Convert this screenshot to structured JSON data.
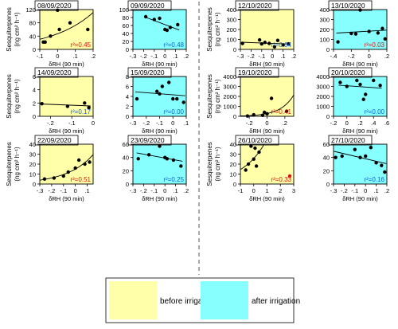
{
  "colors": {
    "before": "#ffffaa",
    "after": "#88ffff",
    "red_text": "#e01010",
    "blue_text": "#1060e0",
    "point": "#000000"
  },
  "legend": {
    "before": "before irrigation",
    "after": "after irrigation"
  },
  "chart_data": [
    {
      "type": "scatter",
      "title": "08/09/2020",
      "ylabel_lines": [
        "Sesquiterpenes",
        "(ng cm² h⁻¹)"
      ],
      "xlabel": "δRH (90 min)",
      "xlim": [
        -0.1,
        0.2
      ],
      "xticks": [
        -0.1,
        0,
        0.1,
        0.2
      ],
      "ylim": [
        0,
        120
      ],
      "yticks": [
        0,
        40,
        80,
        120
      ],
      "phase": "before",
      "r2_label": "r²=0.45",
      "r2_color": "red",
      "points": [
        [
          -0.08,
          22
        ],
        [
          -0.07,
          22
        ],
        [
          -0.04,
          40
        ],
        [
          0,
          118
        ],
        [
          0.01,
          60
        ],
        [
          0.07,
          80
        ],
        [
          0.17,
          60
        ]
      ],
      "fit": "power"
    },
    {
      "type": "scatter",
      "title": "09/09/2020",
      "ylabel_lines": [],
      "xlabel": "δRH (90 min)",
      "xlim": [
        -0.3,
        0.2
      ],
      "xticks": [
        -0.3,
        -0.2,
        -0.1,
        0,
        0.1,
        0.2
      ],
      "ylim": [
        0,
        100
      ],
      "yticks": [
        0,
        20,
        40,
        60,
        80,
        100
      ],
      "phase": "after",
      "r2_label": "r²=0.48",
      "r2_color": "blue",
      "points": [
        [
          -0.18,
          82
        ],
        [
          -0.1,
          75
        ],
        [
          -0.05,
          78
        ],
        [
          0,
          50
        ],
        [
          0.05,
          55
        ],
        [
          0.02,
          48
        ],
        [
          0.12,
          62
        ]
      ],
      "fit": "linear"
    },
    {
      "type": "scatter",
      "title": "12/10/2020",
      "ylabel_lines": [
        "Sesquiterpenes",
        "(ng cm² h⁻¹)"
      ],
      "xlabel": "δRH (90 min)",
      "xlim": [
        -0.3,
        0.2
      ],
      "xticks": [
        -0.3,
        -0.2,
        -0.1,
        0,
        0.1,
        0.2
      ],
      "ylim": [
        0,
        400
      ],
      "yticks": [
        0,
        100,
        200,
        300,
        400
      ],
      "phase": "before",
      "r2_label": "r²=0.04",
      "r2_color": "blue",
      "points": [
        [
          -0.28,
          60
        ],
        [
          -0.12,
          95
        ],
        [
          -0.1,
          55
        ],
        [
          -0.07,
          70
        ],
        [
          -0.03,
          60
        ],
        [
          0.02,
          25
        ],
        [
          0.05,
          90
        ],
        [
          0.1,
          45
        ],
        [
          0.15,
          55
        ]
      ],
      "fit": "linear"
    },
    {
      "type": "scatter",
      "title": "13/10/2020",
      "ylabel_lines": [],
      "xlabel": "δRH (90 min)",
      "xlim": [
        -0.4,
        0.2
      ],
      "xticks": [
        -0.4,
        -0.2,
        0,
        0.2
      ],
      "ylim": [
        0,
        400
      ],
      "yticks": [
        0,
        100,
        200,
        300,
        400
      ],
      "phase": "after",
      "r2_label": "r²=0.03",
      "r2_color": "red",
      "points": [
        [
          -0.35,
          75
        ],
        [
          -0.2,
          160
        ],
        [
          -0.15,
          155
        ],
        [
          -0.1,
          395
        ],
        [
          0,
          180
        ],
        [
          0.1,
          165
        ],
        [
          0.15,
          210
        ],
        [
          0.18,
          105
        ]
      ],
      "fit": "linear"
    },
    {
      "type": "scatter",
      "title": "14/09/2020",
      "ylabel_lines": [
        "Sesquiterpenes",
        "(ng cm² h⁻¹)"
      ],
      "xlabel": "δRH (90 min)",
      "xlim": [
        -0.25,
        0
      ],
      "xticks": [
        -0.2,
        -0.1,
        0
      ],
      "ylim": [
        0,
        6
      ],
      "yticks": [
        0,
        2,
        4,
        6
      ],
      "phase": "before",
      "r2_label": "r²=0.17",
      "r2_color": "blue",
      "points": [
        [
          -0.24,
          1.9
        ],
        [
          -0.12,
          1.5
        ],
        [
          -0.04,
          2.0
        ],
        [
          -0.02,
          1.3
        ]
      ],
      "fit": "linear"
    },
    {
      "type": "scatter",
      "title": "15/09/2020",
      "ylabel_lines": [],
      "xlabel": "δRH (90 min)",
      "xlim": [
        -0.3,
        0.1
      ],
      "xticks": [
        -0.3,
        -0.2,
        -0.1,
        0,
        0.1
      ],
      "ylim": [
        0,
        8
      ],
      "yticks": [
        0,
        2,
        4,
        6,
        8
      ],
      "phase": "after",
      "r2_label": "r²=0.00",
      "r2_color": "blue",
      "points": [
        [
          -0.27,
          3.5
        ],
        [
          -0.12,
          5.0
        ],
        [
          -0.1,
          4.5
        ],
        [
          -0.08,
          6.0
        ],
        [
          -0.03,
          6.8
        ],
        [
          0,
          3.5
        ],
        [
          0.03,
          3.5
        ],
        [
          0.08,
          2.8
        ]
      ],
      "fit": "linear"
    },
    {
      "type": "scatter",
      "title": "19/10/2020",
      "ylabel_lines": [
        "Sesquiterpenes",
        "(ng cm² h⁻¹)"
      ],
      "xlabel": "δRH (90 min)",
      "xlim": [
        -0.3,
        0.3
      ],
      "xticks": [
        -0.2,
        0,
        0.2
      ],
      "ylim": [
        0,
        4000
      ],
      "yticks": [
        0,
        1000,
        2000,
        3000,
        4000
      ],
      "phase": "before",
      "r2_label": "r²=0.41",
      "r2_color": "red",
      "points": [
        [
          -0.22,
          30
        ],
        [
          -0.15,
          150
        ],
        [
          -0.05,
          100
        ],
        [
          -0.03,
          400
        ],
        [
          0,
          250
        ],
        [
          0.05,
          1800
        ],
        [
          0.22,
          500
        ]
      ],
      "fit": "power"
    },
    {
      "type": "scatter",
      "title": "20/10/2020",
      "ylabel_lines": [],
      "xlabel": "δRH (90 min)",
      "xlim": [
        -0.2,
        0.6
      ],
      "xticks": [
        -0.2,
        0,
        0.2,
        0.4,
        0.6
      ],
      "ylim": [
        0,
        4000
      ],
      "yticks": [
        0,
        1000,
        2000,
        3000,
        4000
      ],
      "phase": "after",
      "r2_label": "r²=0.00",
      "r2_color": "blue",
      "points": [
        [
          -0.1,
          3400
        ],
        [
          0,
          3000
        ],
        [
          0.15,
          3600
        ],
        [
          0.2,
          3200
        ],
        [
          0.25,
          1700
        ],
        [
          0.28,
          2200
        ],
        [
          0.4,
          3600
        ],
        [
          0.5,
          3100
        ]
      ],
      "fit": "linear"
    },
    {
      "type": "scatter",
      "title": "22/09/2020",
      "ylabel_lines": [
        "Sesquiterpenes",
        "(ng cm² h⁻¹)"
      ],
      "xlabel": "δRH (90 min)",
      "xlim": [
        -0.3,
        0.15
      ],
      "xticks": [
        -0.3,
        -0.2,
        -0.1,
        0,
        0.1
      ],
      "ylim": [
        0,
        40
      ],
      "yticks": [
        0,
        10,
        20,
        30,
        40
      ],
      "phase": "before",
      "r2_label": "r²=0.51",
      "r2_color": "red",
      "points": [
        [
          -0.26,
          5
        ],
        [
          -0.18,
          6
        ],
        [
          -0.1,
          8
        ],
        [
          -0.06,
          12
        ],
        [
          0,
          16
        ],
        [
          0.03,
          24
        ],
        [
          0.08,
          20
        ],
        [
          0.12,
          22
        ]
      ],
      "fit": "power"
    },
    {
      "type": "scatter",
      "title": "23/09/2020",
      "ylabel_lines": [],
      "xlabel": "δRH (90 min)",
      "xlim": [
        -0.3,
        0.2
      ],
      "xticks": [
        -0.3,
        -0.2,
        -0.1,
        0,
        0.1,
        0.2
      ],
      "ylim": [
        0,
        60
      ],
      "yticks": [
        0,
        20,
        40,
        60
      ],
      "phase": "after",
      "r2_label": "r²=0.25",
      "r2_color": "blue",
      "points": [
        [
          -0.25,
          38
        ],
        [
          -0.15,
          44
        ],
        [
          -0.05,
          57
        ],
        [
          0,
          40
        ],
        [
          0.02,
          38
        ],
        [
          0.08,
          36
        ],
        [
          0.15,
          27
        ]
      ],
      "fit": "linear"
    },
    {
      "type": "scatter",
      "title": "26/10/2020",
      "ylabel_lines": [
        "Sesquiterpenes",
        "(ng cm² h⁻¹)"
      ],
      "xlabel": "δRH (90 min)",
      "xlim": [
        -1,
        3
      ],
      "xticks": [
        -1,
        0,
        1,
        2,
        3
      ],
      "ylim": [
        0,
        40
      ],
      "yticks": [
        0,
        10,
        20,
        30,
        40
      ],
      "phase": "before",
      "r2_label": "r²=0.33",
      "r2_color": "red",
      "points": [
        [
          -0.6,
          14
        ],
        [
          -0.4,
          20
        ],
        [
          -0.2,
          38
        ],
        [
          0,
          25
        ],
        [
          0.1,
          36
        ],
        [
          0.2,
          18
        ],
        [
          0.4,
          32
        ]
      ],
      "outlier": [
        2.7,
        8
      ],
      "fit": "power"
    },
    {
      "type": "scatter",
      "title": "27/10/2020",
      "ylabel_lines": [],
      "xlabel": "δRH (90 min)",
      "xlim": [
        -0.3,
        0.2
      ],
      "xticks": [
        -0.3,
        -0.2,
        -0.1,
        0,
        0.1,
        0.2
      ],
      "ylim": [
        0,
        60
      ],
      "yticks": [
        0,
        20,
        40,
        60
      ],
      "phase": "after",
      "r2_label": "r²=0.16",
      "r2_color": "blue",
      "points": [
        [
          -0.28,
          40
        ],
        [
          -0.22,
          42
        ],
        [
          -0.1,
          52
        ],
        [
          -0.05,
          40
        ],
        [
          0,
          42
        ],
        [
          0.05,
          55
        ],
        [
          0.1,
          32
        ],
        [
          0.15,
          28
        ],
        [
          0.18,
          18
        ]
      ],
      "fit": "linear"
    }
  ]
}
